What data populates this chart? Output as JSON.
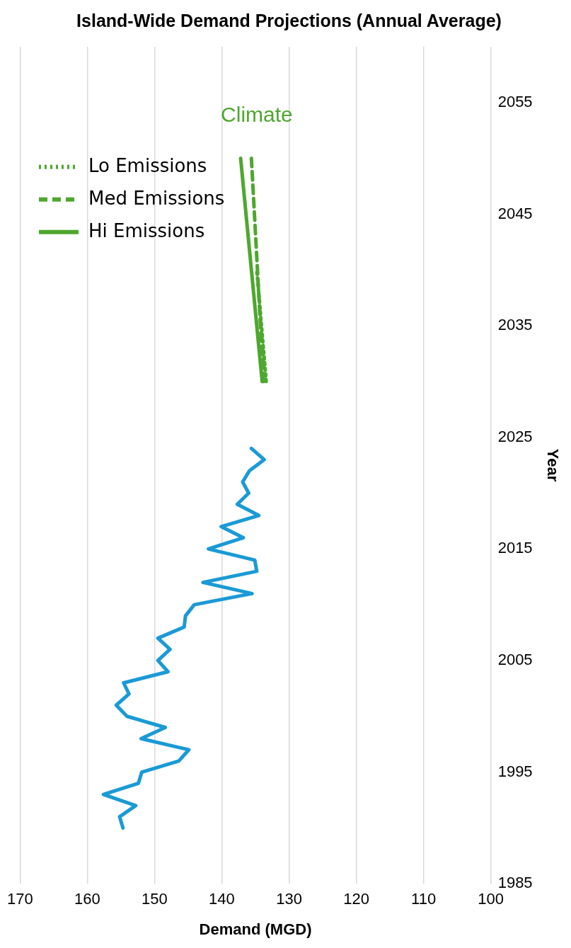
{
  "chart_data": {
    "type": "line",
    "title": "Island-Wide Demand Projections (Annual Average)",
    "xlabel": "Demand (MGD)",
    "ylabel": "Year",
    "xlim": [
      170,
      100
    ],
    "xticks": [
      170,
      160,
      150,
      140,
      130,
      120,
      110,
      100
    ],
    "ylim": [
      1985,
      2060
    ],
    "yticks": [
      1985,
      1995,
      2005,
      2015,
      2025,
      2035,
      2045,
      2055
    ],
    "grid": "x",
    "legend": "top left",
    "annotations": [
      "Climate"
    ],
    "series": [
      {
        "color": "#1a9ad6",
        "line_style": "solid",
        "x": [
          154.7,
          155.2,
          152.8,
          157.6,
          152.4,
          151.9,
          146.4,
          144.9,
          152.0,
          148.4,
          154.1,
          155.7,
          153.8,
          154.6,
          148.0,
          149.5,
          147.7,
          149.5,
          145.6,
          145.4,
          144.1,
          135.5,
          142.8,
          134.8,
          135.1,
          142.0,
          136.8,
          140.1,
          134.5,
          137.7,
          136.0,
          136.9,
          135.9,
          133.7,
          135.6
        ],
        "values": [
          1990,
          1991,
          1992,
          1993,
          1994,
          1995,
          1996,
          1997,
          1998,
          1999,
          2000,
          2001,
          2002,
          2003,
          2004,
          2005,
          2006,
          2007,
          2008,
          2009,
          2010,
          2011,
          2012,
          2013,
          2014,
          2015,
          2016,
          2017,
          2018,
          2019,
          2020,
          2021,
          2022,
          2023,
          2024
        ]
      },
      {
        "name": "Lo Emissions",
        "color": "#4ea72e",
        "line_style": "dotted",
        "x": [
          133.4,
          134.8
        ],
        "values": [
          2030,
          2040
        ]
      },
      {
        "name": "Med Emissions",
        "color": "#4ea72e",
        "line_style": "dashed",
        "x": [
          133.8,
          135.6
        ],
        "values": [
          2030,
          2050
        ]
      },
      {
        "name": "Hi Emissions",
        "color": "#4ea72e",
        "line_style": "solid",
        "x": [
          134.0,
          137.2
        ],
        "values": [
          2030,
          2050
        ]
      }
    ]
  }
}
